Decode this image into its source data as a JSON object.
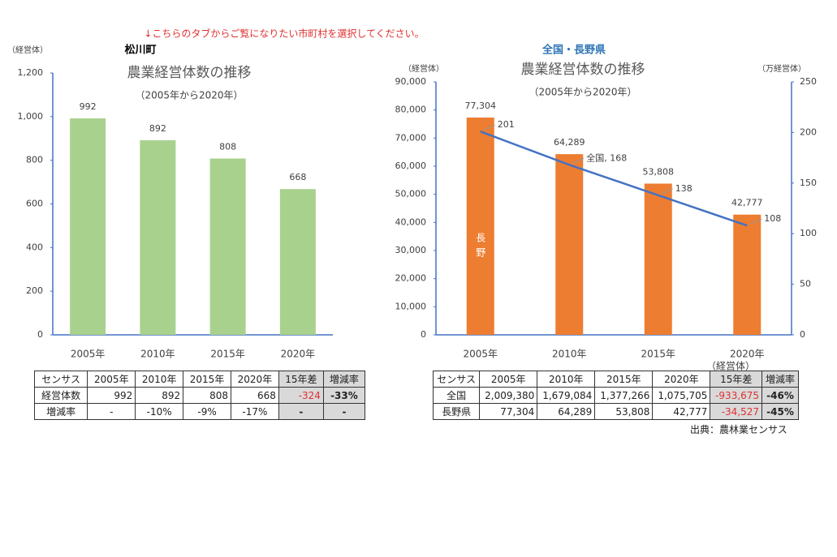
{
  "notice": "↓こちらのタブからご覧になりたい市町村を選択してください。",
  "chart_data": [
    {
      "type": "bar",
      "region": "松川町",
      "title": "農業経営体数の推移",
      "subtitle": "（2005年から2020年）",
      "y_label": "（経営体）",
      "categories": [
        "2005年",
        "2010年",
        "2015年",
        "2020年"
      ],
      "values": [
        992,
        892,
        808,
        668
      ],
      "color": "#a9d18e",
      "ylim": [
        0,
        1200
      ],
      "yticks": [
        0,
        200,
        400,
        600,
        800,
        {
          "value": 1000,
          "label": "1,000"
        },
        {
          "value": 1200,
          "label": "1,200"
        }
      ]
    },
    {
      "type": "bar_line",
      "region": "全国・長野県",
      "title": "農業経営体数の推移",
      "subtitle": "（2005年から2020年）",
      "y_label": "（経営体）",
      "y2_label": "（万経営体）",
      "x_label": "（経営体）",
      "categories": [
        "2005年",
        "2010年",
        "2015年",
        "2020年"
      ],
      "series": [
        {
          "name": "長野",
          "color": "#ed7d31",
          "values": [
            77304,
            64289,
            53808,
            42777
          ],
          "value_labels": [
            "77,304",
            "64,289",
            "53,808",
            "42,777"
          ]
        },
        {
          "color": "#4472c4",
          "axis": "y2",
          "values": [
            201,
            168,
            138,
            108
          ],
          "value_labels": [
            "201",
            "全国, 168",
            "138",
            "108"
          ]
        }
      ],
      "ylim": [
        0,
        90000
      ],
      "yticks": [
        0,
        {
          "value": 10000,
          "label": "10,000"
        },
        {
          "value": 20000,
          "label": "20,000"
        },
        {
          "value": 30000,
          "label": "30,000"
        },
        {
          "value": 40000,
          "label": "40,000"
        },
        {
          "value": 50000,
          "label": "50,000"
        },
        {
          "value": 60000,
          "label": "60,000"
        },
        {
          "value": 70000,
          "label": "70,000"
        },
        {
          "value": 80000,
          "label": "80,000"
        },
        {
          "value": 90000,
          "label": "90,000"
        }
      ],
      "y2lim": [
        0,
        250
      ],
      "y2ticks": [
        0,
        50,
        100,
        150,
        200,
        250
      ]
    }
  ],
  "tables": [
    {
      "header": [
        "センサス",
        "2005年",
        "2010年",
        "2015年",
        "2020年",
        "15年差",
        "増減率"
      ],
      "rows": [
        [
          "経営体数",
          "992",
          "892",
          "808",
          "668",
          "-324",
          "-33%"
        ],
        [
          "増減率",
          "-",
          "-10%",
          "-9%",
          "-17%",
          "-",
          "-"
        ]
      ]
    },
    {
      "header": [
        "センサス",
        "2005年",
        "2010年",
        "2015年",
        "2020年",
        "15年差",
        "増減率"
      ],
      "rows": [
        [
          "全国",
          "2,009,380",
          "1,679,084",
          "1,377,266",
          "1,075,705",
          "-933,675",
          "-46%"
        ],
        [
          "長野県",
          "77,304",
          "64,289",
          "53,808",
          "42,777",
          "-34,527",
          "-45%"
        ]
      ]
    }
  ],
  "source": "出典：農林業センサス"
}
